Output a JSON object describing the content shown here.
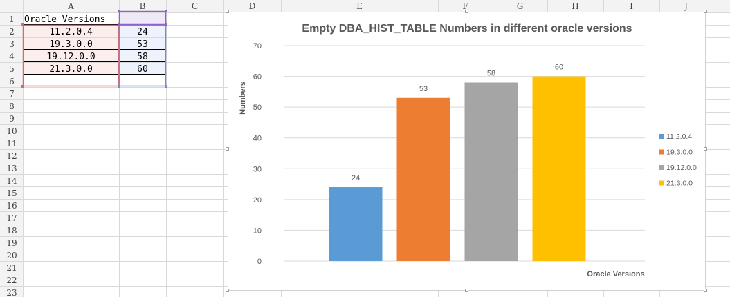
{
  "spreadsheet": {
    "columns": [
      "",
      "A",
      "B",
      "C",
      "D",
      "E",
      "F",
      "G",
      "H",
      "I",
      "J"
    ],
    "rows": [
      "1",
      "2",
      "3",
      "4",
      "5",
      "6",
      "7",
      "8",
      "9",
      "10",
      "11",
      "12",
      "13",
      "14",
      "15",
      "16",
      "17",
      "18",
      "19",
      "20",
      "21",
      "22",
      "23"
    ],
    "cells": [
      {
        "col": 0,
        "row": 0,
        "value": "Oracle Versions",
        "align": "left"
      },
      {
        "col": 0,
        "row": 1,
        "value": "11.2.0.4",
        "align": "center"
      },
      {
        "col": 0,
        "row": 2,
        "value": "19.3.0.0",
        "align": "center"
      },
      {
        "col": 0,
        "row": 3,
        "value": "19.12.0.0",
        "align": "center"
      },
      {
        "col": 0,
        "row": 4,
        "value": "21.3.0.0",
        "align": "center"
      },
      {
        "col": 1,
        "row": 1,
        "value": "24",
        "align": "center"
      },
      {
        "col": 1,
        "row": 2,
        "value": "53",
        "align": "center"
      },
      {
        "col": 1,
        "row": 3,
        "value": "58",
        "align": "center"
      },
      {
        "col": 1,
        "row": 4,
        "value": "60",
        "align": "center"
      }
    ]
  },
  "chart_data": {
    "type": "bar",
    "title": "Empty DBA_HIST_TABLE Numbers in different oracle versions",
    "xlabel": "Oracle Versions",
    "ylabel": "Numbers",
    "categories": [
      "11.2.0.4",
      "19.3.0.0",
      "19.12.0.0",
      "21.3.0.0"
    ],
    "values": [
      24,
      53,
      58,
      60
    ],
    "colors": [
      "#5b9bd5",
      "#ed7d31",
      "#a5a5a5",
      "#ffc000"
    ],
    "ylim": [
      0,
      70
    ],
    "yticks": [
      0,
      10,
      20,
      30,
      40,
      50,
      60,
      70
    ],
    "grid": true,
    "legend_position": "right"
  },
  "colors": {
    "gridline": "#d9d9d9",
    "header_bg": "#f3f3f3",
    "header_text": "#444444",
    "axis_text": "#595959",
    "title_text": "#595959",
    "range_red": "#e06666",
    "range_blue": "#6d8fd8",
    "range_purple": "#8e63ce",
    "range_red_fill": "#fdeeee",
    "range_blue_fill": "#eef2fc",
    "range_purple_fill": "#efe9f7"
  }
}
